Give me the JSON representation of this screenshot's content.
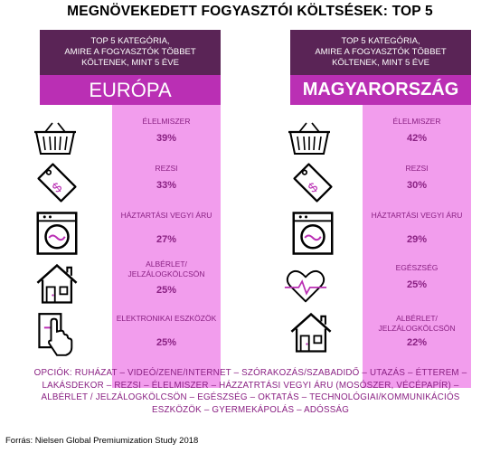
{
  "title": "MEGNÖVEKEDETT FOGYASZTÓI KÖLTSÉSEK: TOP 5",
  "chart_data": [
    {
      "type": "table",
      "header": "TOP 5  KATEGÓRIA,\nAMIRE  A FOGYASZTÓK TÖBBET\nKÖLTENEK,  MINT  5 ÉVE",
      "region": "EURÓPA",
      "rows": [
        {
          "label": "ÉLELMISZER",
          "value": "39%",
          "icon": "basket-icon"
        },
        {
          "label": "REZSI",
          "value": "33%",
          "icon": "price-tag-icon"
        },
        {
          "label": "HÁZTARTÁSI VEGYI ÁRU",
          "value": "27%",
          "icon": "washing-machine-icon"
        },
        {
          "label": "ALBÉRLET/ JELZÁLOGKÖLCSÖN",
          "value": "25%",
          "icon": "house-icon"
        },
        {
          "label": "ELEKTRONIKAI ESZKÖZÖK",
          "value": "25%",
          "icon": "touchscreen-hand-icon"
        }
      ]
    },
    {
      "type": "table",
      "header": "TOP 5  KATEGÓRIA,\nAMIRE  A FOGYASZTÓK TÖBBET\nKÖLTENEK,  MINT  5 ÉVE",
      "region": "MAGYARORSZÁG",
      "rows": [
        {
          "label": "ÉLELMISZER",
          "value": "42%",
          "icon": "basket-icon"
        },
        {
          "label": "REZSI",
          "value": "30%",
          "icon": "price-tag-icon"
        },
        {
          "label": "HÁZTARTÁSI VEGYI ÁRU",
          "value": "29%",
          "icon": "washing-machine-icon"
        },
        {
          "label": "EGÉSZSÉG",
          "value": "25%",
          "icon": "heart-pulse-icon"
        },
        {
          "label": "ALBÉRLET/ JELZÁLOGKÖLCSÖN",
          "value": "22%",
          "icon": "house-icon"
        }
      ]
    }
  ],
  "options_text": "OPCIÓK:  RUHÁZAT – VIDEÓ/ZENE/INTERNET  – SZÓRAKOZÁS/SZABADIDŐ  – UTAZÁS – ÉTTEREM  – LAKÁSDEKOR  – REZSI – ÉLELMISZER  – HÁZZATRTÁSI VEGYI ÁRU (MOSÓSZER, VÉCÉPAPÍR)  – ALBÉRLET / JELZÁLOGKÖLCSÖN  – EGÉSZSÉG  – OKTATÁS – TECHNOLÓGIAI/KOMMUNIKÁCIÓS  ESZKÖZÖK  – GYERMEKÁPOLÁS  – ADÓSSÁG",
  "source": "Forrás: Nielsen Global Premiumization  Study 2018",
  "colors": {
    "header_bg": "#5a2456",
    "region_bg": "#ba2fb4",
    "column_bg": "#f29ded",
    "text_accent": "#8a2183"
  }
}
